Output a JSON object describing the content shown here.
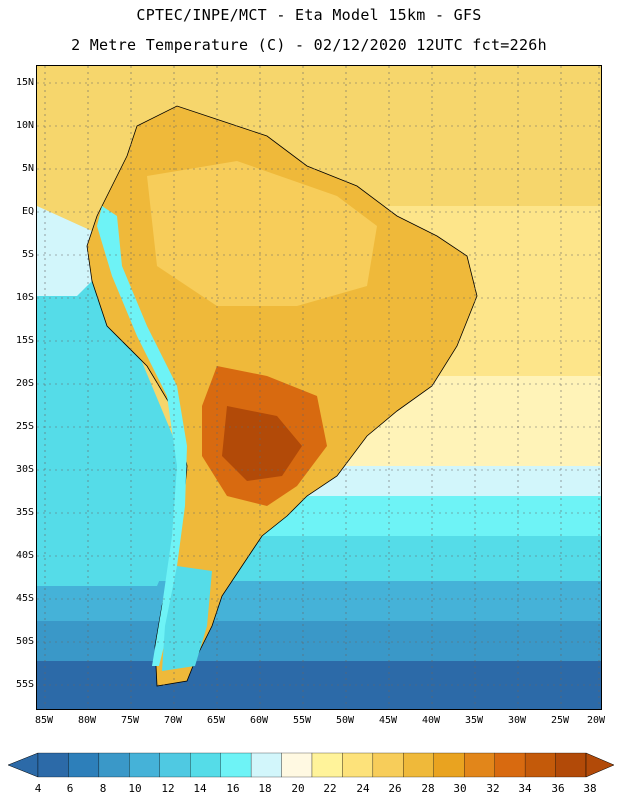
{
  "title_line1": "CPTEC/INPE/MCT -  Eta Model 15km - GFS",
  "title_line2": "2 Metre Temperature (C) - 02/12/2020 12UTC fct=226h",
  "lat_labels": [
    "15N",
    "10N",
    "5N",
    "EQ",
    "5S",
    "10S",
    "15S",
    "20S",
    "25S",
    "30S",
    "35S",
    "40S",
    "45S",
    "50S",
    "55S"
  ],
  "lon_labels": [
    "85W",
    "80W",
    "75W",
    "70W",
    "65W",
    "60W",
    "55W",
    "50W",
    "45W",
    "40W",
    "35W",
    "30W",
    "25W",
    "20W"
  ],
  "colorbar": {
    "labels": [
      "4",
      "6",
      "8",
      "10",
      "12",
      "14",
      "16",
      "18",
      "20",
      "22",
      "24",
      "26",
      "28",
      "30",
      "32",
      "34",
      "36",
      "38"
    ],
    "colors": [
      "#2c6aa8",
      "#2d7fba",
      "#3a98c8",
      "#45b2d8",
      "#4fc9e2",
      "#55dce8",
      "#6ef3f6",
      "#d2f6fb",
      "#fff9e2",
      "#fff39a",
      "#fde27a",
      "#f7cd5a",
      "#efb93a",
      "#e9a320",
      "#e2861a",
      "#d86a10",
      "#c45a0a",
      "#b24a08"
    ]
  },
  "map": {
    "region": "South America",
    "variable": "2 Metre Temperature",
    "units": "C"
  }
}
